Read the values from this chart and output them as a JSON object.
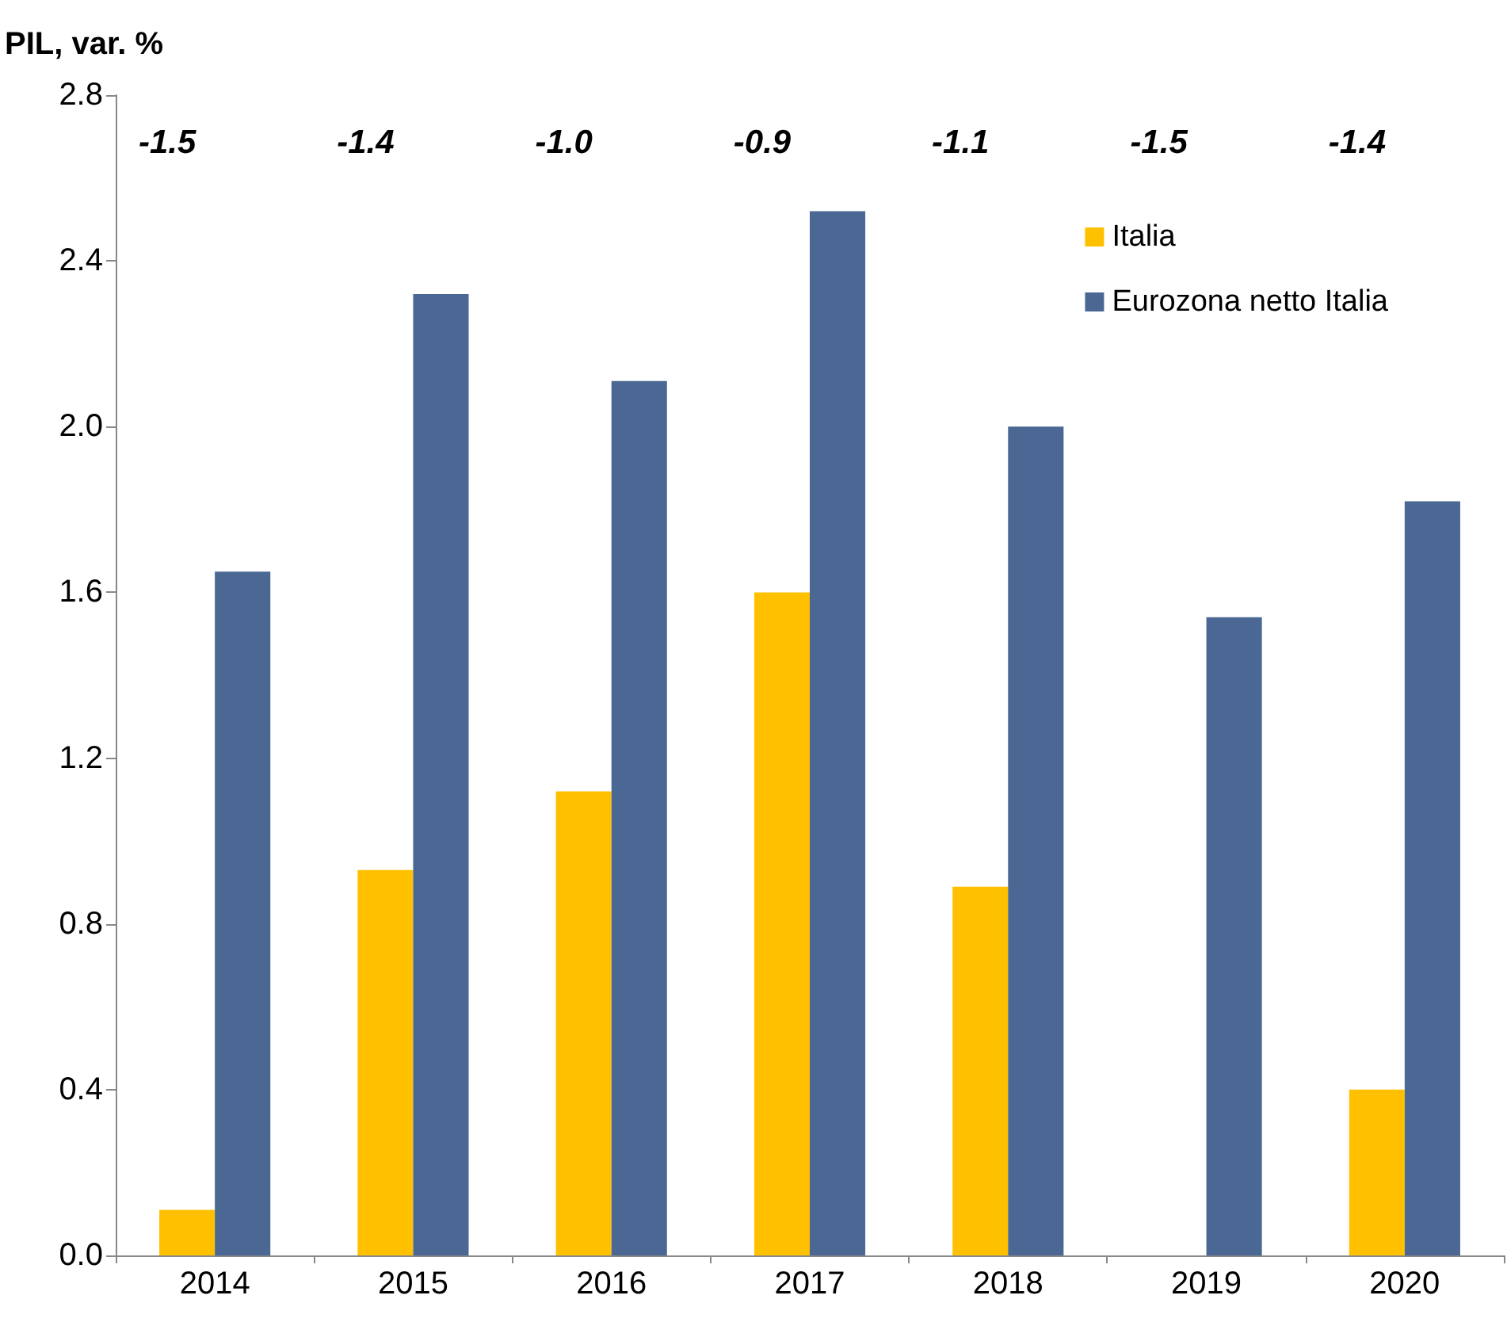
{
  "chart_data": {
    "type": "bar",
    "ylabel": "PIL, var. %",
    "categories": [
      "2014",
      "2015",
      "2016",
      "2017",
      "2018",
      "2019",
      "2020"
    ],
    "series": [
      {
        "name": "Italia",
        "color": "#ffc000",
        "values": [
          0.11,
          0.93,
          1.12,
          1.6,
          0.89,
          0.0,
          0.4
        ]
      },
      {
        "name": "Eurozona netto Italia",
        "color": "#4a6893",
        "values": [
          1.65,
          2.32,
          2.11,
          2.52,
          2.0,
          1.54,
          1.82
        ]
      }
    ],
    "ylim": [
      0,
      2.8
    ],
    "yticks": [
      {
        "value": 0,
        "label": "0.0"
      },
      {
        "value": 0.4,
        "label": "0.4"
      },
      {
        "value": 0.8,
        "label": "0.8"
      },
      {
        "value": 1.2,
        "label": "1.2"
      },
      {
        "value": 1.6,
        "label": "1.6"
      },
      {
        "value": 2.0,
        "label": "2.0"
      },
      {
        "value": 2.4,
        "label": "2.4"
      },
      {
        "value": 2.8,
        "label": "2.8"
      }
    ],
    "annotations": [
      "-1.5",
      "-1.4",
      "-1.0",
      "-0.9",
      "-1.1",
      "-1.5",
      "-1.4"
    ],
    "legend": "top right",
    "grid": false
  }
}
